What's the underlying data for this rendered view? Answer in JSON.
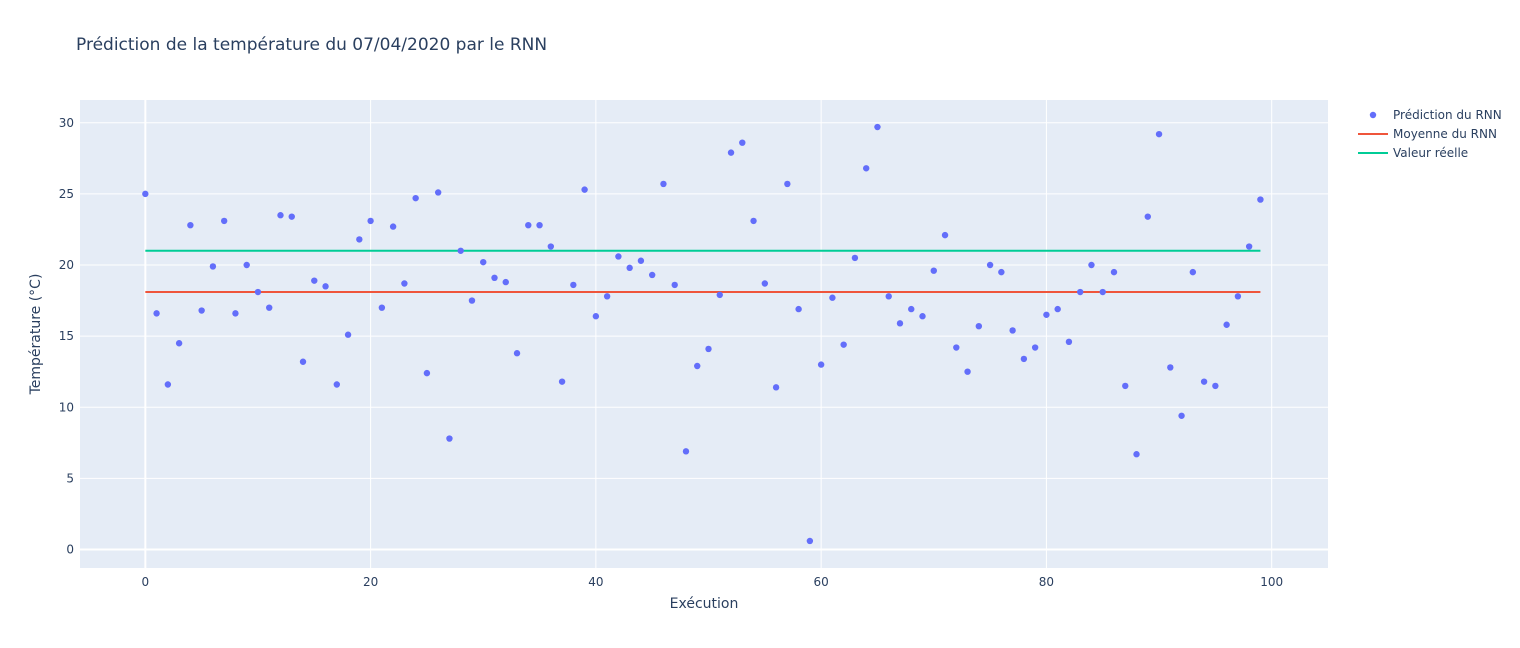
{
  "chart_data": {
    "type": "scatter",
    "title": "Prédiction de la température du 07/04/2020 par le RNN",
    "xlabel": "Exécution",
    "ylabel": "Température (°C)",
    "xlim": [
      -5.8,
      105
    ],
    "ylim": [
      -1.3,
      31.6
    ],
    "xticks": [
      0,
      20,
      40,
      60,
      80,
      100
    ],
    "yticks": [
      0,
      5,
      10,
      15,
      20,
      25,
      30
    ],
    "grid": true,
    "background": "#e5ecf6",
    "legend_position": "top-right",
    "series": [
      {
        "name": "Prédiction du RNN",
        "mode": "markers",
        "color": "#636efa",
        "x": [
          0,
          1,
          2,
          3,
          4,
          5,
          6,
          7,
          8,
          9,
          10,
          11,
          12,
          13,
          14,
          15,
          16,
          17,
          18,
          19,
          20,
          21,
          22,
          23,
          24,
          25,
          26,
          27,
          28,
          29,
          30,
          31,
          32,
          33,
          34,
          35,
          36,
          37,
          38,
          39,
          40,
          41,
          42,
          43,
          44,
          45,
          46,
          47,
          48,
          49,
          50,
          51,
          52,
          53,
          54,
          55,
          56,
          57,
          58,
          59,
          60,
          61,
          62,
          63,
          64,
          65,
          66,
          67,
          68,
          69,
          70,
          71,
          72,
          73,
          74,
          75,
          76,
          77,
          78,
          79,
          80,
          81,
          82,
          83,
          84,
          85,
          86,
          87,
          88,
          89,
          90,
          91,
          92,
          93,
          94,
          95,
          96,
          97,
          98,
          99
        ],
        "y": [
          25.0,
          16.6,
          11.6,
          14.5,
          22.8,
          16.8,
          19.9,
          23.1,
          16.6,
          20.0,
          18.1,
          17.0,
          23.5,
          23.4,
          13.2,
          18.9,
          18.5,
          11.6,
          15.1,
          21.8,
          23.1,
          17.0,
          22.7,
          18.7,
          24.7,
          12.4,
          25.1,
          7.8,
          21.0,
          17.5,
          20.2,
          19.1,
          18.8,
          13.8,
          22.8,
          22.8,
          21.3,
          11.8,
          18.6,
          25.3,
          16.4,
          17.8,
          20.6,
          19.8,
          20.3,
          19.3,
          25.7,
          18.6,
          6.9,
          12.9,
          14.1,
          17.9,
          27.9,
          28.6,
          23.1,
          18.7,
          11.4,
          25.7,
          16.9,
          0.6,
          13.0,
          17.7,
          14.4,
          20.5,
          26.8,
          29.7,
          17.8,
          15.9,
          16.9,
          16.4,
          19.6,
          22.1,
          14.2,
          12.5,
          15.7,
          20.0,
          19.5,
          15.4,
          13.4,
          14.2,
          16.5,
          16.9,
          14.6,
          18.1,
          20.0,
          18.1,
          19.5,
          11.5,
          6.7,
          23.4,
          29.2,
          12.8,
          9.4,
          19.5,
          11.8,
          11.5,
          15.8,
          17.8,
          21.3,
          24.6
        ]
      },
      {
        "name": "Moyenne du RNN",
        "mode": "lines",
        "color": "#ef553b",
        "x": [
          0,
          99
        ],
        "y": [
          18.1,
          18.1
        ]
      },
      {
        "name": "Valeur réelle",
        "mode": "lines",
        "color": "#00cc96",
        "x": [
          0,
          99
        ],
        "y": [
          21.0,
          21.0
        ]
      }
    ]
  }
}
